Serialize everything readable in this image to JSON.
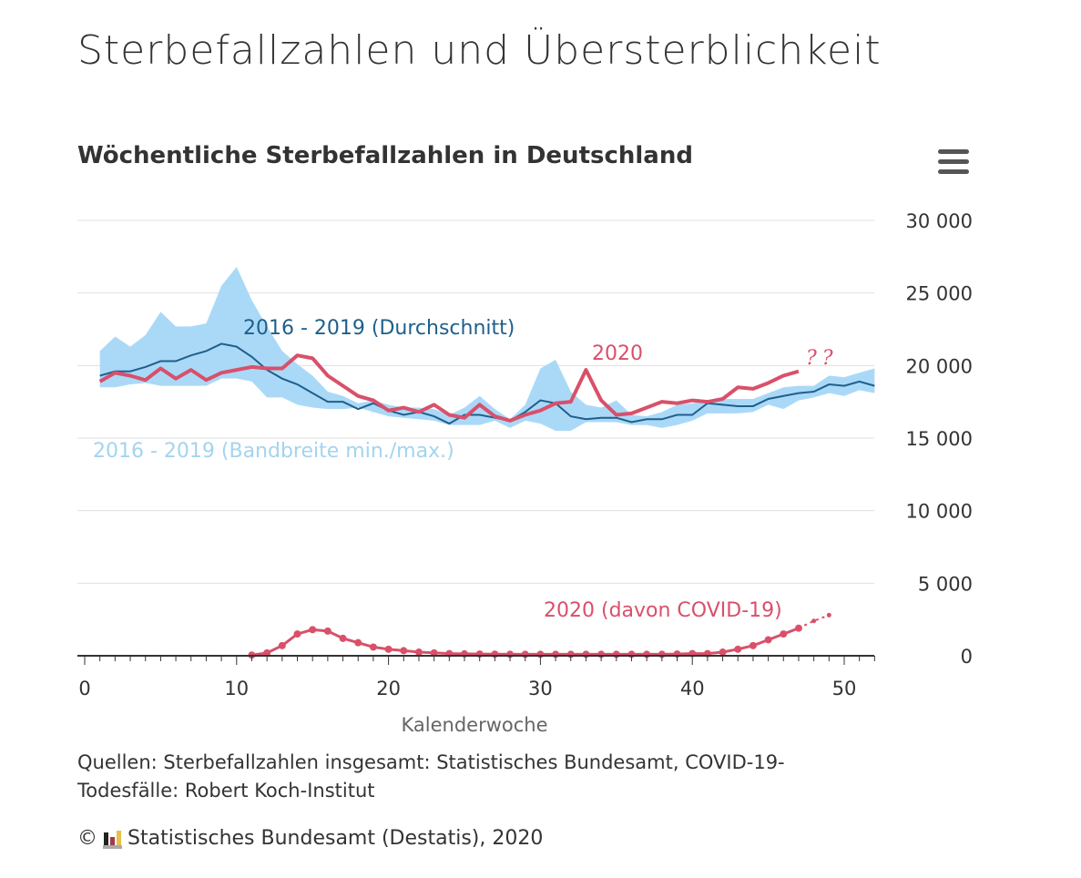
{
  "page_title": "Sterbefallzahlen und Übersterblichkeit",
  "menu_icon": "hamburger-menu-icon",
  "chart_data": {
    "type": "line",
    "title": "Wöchentliche Sterbefallzahlen in Deutschland",
    "xlabel": "Kalenderwoche",
    "ylabel": "",
    "xlim": [
      0,
      52
    ],
    "ylim": [
      0,
      30000
    ],
    "x_ticks": [
      "0",
      "10",
      "20",
      "30",
      "40",
      "50"
    ],
    "y_ticks": [
      "0",
      "5 000",
      "10 000",
      "15 000",
      "20 000",
      "25 000",
      "30 000"
    ],
    "grid": true,
    "weeks": [
      1,
      2,
      3,
      4,
      5,
      6,
      7,
      8,
      9,
      10,
      11,
      12,
      13,
      14,
      15,
      16,
      17,
      18,
      19,
      20,
      21,
      22,
      23,
      24,
      25,
      26,
      27,
      28,
      29,
      30,
      31,
      32,
      33,
      34,
      35,
      36,
      37,
      38,
      39,
      40,
      41,
      42,
      43,
      44,
      45,
      46,
      47,
      48,
      49,
      50,
      51,
      52
    ],
    "band": {
      "name": "2016 - 2019 (Bandbreite min./max.)",
      "min": [
        18500,
        18500,
        18700,
        18800,
        18600,
        18600,
        18600,
        18600,
        19100,
        19100,
        18900,
        17800,
        17800,
        17300,
        17100,
        17000,
        17000,
        17100,
        16800,
        16500,
        16400,
        16300,
        16200,
        15900,
        15900,
        15900,
        16200,
        15700,
        16200,
        16000,
        15500,
        15500,
        16100,
        16100,
        16100,
        15900,
        15900,
        15700,
        15900,
        16200,
        16700,
        16700,
        16700,
        16800,
        17300,
        17000,
        17600,
        17800,
        18100,
        17900,
        18300,
        18100
      ],
      "max": [
        21000,
        22000,
        21300,
        22100,
        23700,
        22700,
        22700,
        22900,
        25500,
        26800,
        24500,
        22700,
        21000,
        20100,
        19300,
        18200,
        17900,
        17400,
        17600,
        17300,
        17100,
        17100,
        17000,
        16600,
        17100,
        17900,
        17000,
        16300,
        17300,
        19800,
        20400,
        18200,
        17300,
        17100,
        17600,
        16600,
        16500,
        16800,
        17300,
        17400,
        17600,
        17700,
        17700,
        17700,
        18100,
        18500,
        18600,
        18600,
        19300,
        19200,
        19500,
        19800
      ]
    },
    "series": [
      {
        "name": "2016 - 2019 (Durchschnitt)",
        "color": "#1f5f8b",
        "values": [
          19300,
          19600,
          19600,
          19900,
          20300,
          20300,
          20700,
          21000,
          21500,
          21300,
          20600,
          19700,
          19100,
          18700,
          18100,
          17500,
          17500,
          17000,
          17400,
          16900,
          16600,
          16800,
          16500,
          16000,
          16600,
          16600,
          16400,
          16200,
          16800,
          17600,
          17400,
          16500,
          16300,
          16400,
          16400,
          16100,
          16300,
          16300,
          16600,
          16600,
          17400,
          17300,
          17200,
          17200,
          17700,
          17900,
          18100,
          18200,
          18700,
          18600,
          18900,
          18600
        ]
      },
      {
        "name": "2020",
        "color": "#d9506a",
        "values": [
          18900,
          19500,
          19300,
          19000,
          19800,
          19100,
          19700,
          19000,
          19500,
          19700,
          19900,
          19800,
          19800,
          20700,
          20500,
          19300,
          18600,
          17900,
          17600,
          16900,
          17100,
          16800,
          17300,
          16600,
          16400,
          17300,
          16500,
          16200,
          16600,
          16900,
          17400,
          17500,
          19700,
          17600,
          16600,
          16700,
          17100,
          17500,
          17400,
          17600,
          17500,
          17700,
          18500,
          18400,
          18800,
          19300,
          19600
        ]
      },
      {
        "name": "2020 (davon COVID-19)",
        "color": "#d9506a",
        "weeks_start": 11,
        "values": [
          50,
          200,
          700,
          1500,
          1800,
          1700,
          1200,
          900,
          600,
          450,
          350,
          250,
          200,
          150,
          130,
          120,
          110,
          100,
          100,
          100,
          100,
          100,
          100,
          100,
          100,
          100,
          100,
          100,
          120,
          150,
          150,
          250,
          450,
          700,
          1100,
          1500,
          1900
        ],
        "projection_weeks": [
          47,
          48,
          49
        ],
        "projection_values": [
          1900,
          2400,
          2800
        ]
      }
    ],
    "annotations": {
      "avg_label": "2016 - 2019 (Durchschnitt)",
      "y2020_label": "2020",
      "band_label": "2016 - 2019 (Bandbreite min./max.)",
      "covid_label": "2020 (davon COVID-19)",
      "question_marks": "??"
    }
  },
  "source_text": "Quellen: Sterbefallzahlen insgesamt: Statistisches Bundesamt, COVID-19-Todesfälle: Robert Koch-Institut",
  "copyright_symbol": "©",
  "copyright_text": "Statistisches Bundesamt (Destatis), 2020"
}
